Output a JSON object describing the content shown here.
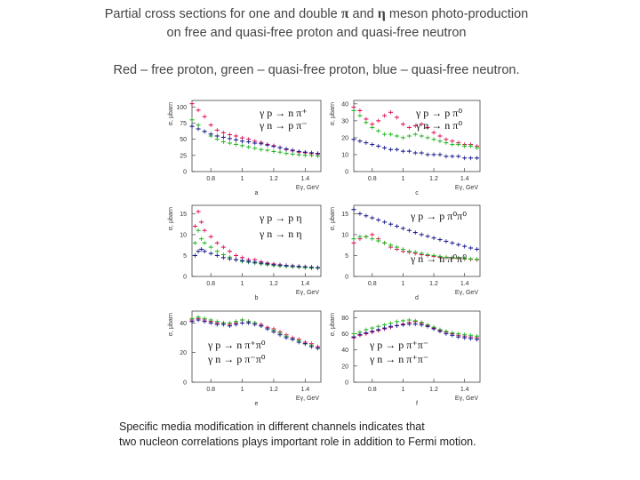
{
  "header": {
    "title_line1_a": "Partial cross sections for one and double ",
    "title_line1_pi": "π",
    "title_line1_and": " and ",
    "title_line1_eta": "η",
    "title_line1_b": " meson photo-production",
    "title_line2": "on free and quasi-free proton and quasi-free neutron",
    "legend_line": "Red – free proton, green – quasi-free proton, blue – quasi-free neutron."
  },
  "colors": {
    "free_proton": "#e0145a",
    "quasi_free_proton": "#22b822",
    "quasi_free_neutron": "#1a1a8c"
  },
  "footer": {
    "line1": "Specific media modification in different channels indicates that",
    "line2": "two nucleon correlations plays important role in addition to Fermi motion."
  },
  "chart_data": [
    {
      "id": "a",
      "type": "scatter",
      "ylabel": "σ, μbarn",
      "xlabel": "Eγ, GeV",
      "panel_label": "a",
      "xlim": [
        0.68,
        1.5
      ],
      "ylim": [
        0,
        110
      ],
      "yticks": [
        "0",
        "25",
        "50",
        "75",
        "100"
      ],
      "xticks": [
        "0.8",
        "1",
        "1.2",
        "1.4"
      ],
      "annotations": [
        "γ p → n π⁺",
        "γ n → p π⁻"
      ],
      "series": [
        {
          "name": "free proton",
          "x": [
            0.68,
            0.72,
            0.76,
            0.8,
            0.84,
            0.88,
            0.92,
            0.96,
            1.0,
            1.04,
            1.08,
            1.12,
            1.16,
            1.2,
            1.24,
            1.28,
            1.32,
            1.36,
            1.4,
            1.44,
            1.48
          ],
          "y": [
            105,
            95,
            85,
            72,
            64,
            60,
            57,
            55,
            52,
            50,
            47,
            45,
            42,
            40,
            37,
            34,
            32,
            30,
            29,
            28,
            27
          ]
        },
        {
          "name": "quasi-free proton",
          "x": [
            0.68,
            0.72,
            0.76,
            0.8,
            0.84,
            0.88,
            0.92,
            0.96,
            1.0,
            1.04,
            1.08,
            1.12,
            1.16,
            1.2,
            1.24,
            1.28,
            1.32,
            1.36,
            1.4,
            1.44,
            1.48
          ],
          "y": [
            80,
            72,
            62,
            55,
            50,
            46,
            44,
            42,
            40,
            38,
            36,
            34,
            33,
            31,
            30,
            28,
            27,
            26,
            25,
            25,
            24
          ]
        },
        {
          "name": "quasi-free neutron",
          "x": [
            0.68,
            0.72,
            0.76,
            0.8,
            0.84,
            0.88,
            0.92,
            0.96,
            1.0,
            1.04,
            1.08,
            1.12,
            1.16,
            1.2,
            1.24,
            1.28,
            1.32,
            1.36,
            1.4,
            1.44,
            1.48
          ],
          "y": [
            70,
            66,
            62,
            58,
            55,
            53,
            51,
            49,
            47,
            46,
            44,
            43,
            41,
            39,
            37,
            35,
            33,
            31,
            30,
            29,
            28
          ]
        }
      ]
    },
    {
      "id": "b",
      "type": "scatter",
      "ylabel": "σ, μbarn",
      "xlabel": "Eγ, GeV",
      "panel_label": "c",
      "xlim": [
        0.68,
        1.5
      ],
      "ylim": [
        0,
        42
      ],
      "yticks": [
        "0",
        "10",
        "20",
        "30",
        "40"
      ],
      "xticks": [
        "0.8",
        "1",
        "1.2",
        "1.4"
      ],
      "annotations": [
        "γ p → p π⁰",
        "γ n → n π⁰"
      ],
      "series": [
        {
          "name": "free proton",
          "x": [
            0.68,
            0.72,
            0.76,
            0.8,
            0.84,
            0.88,
            0.92,
            0.96,
            1.0,
            1.04,
            1.08,
            1.12,
            1.16,
            1.2,
            1.24,
            1.28,
            1.32,
            1.36,
            1.4,
            1.44,
            1.48
          ],
          "y": [
            38,
            36,
            31,
            28,
            30,
            33,
            35,
            32,
            28,
            26,
            27,
            28,
            26,
            23,
            21,
            19,
            18,
            17,
            16,
            16,
            15
          ]
        },
        {
          "name": "quasi-free proton",
          "x": [
            0.68,
            0.72,
            0.76,
            0.8,
            0.84,
            0.88,
            0.92,
            0.96,
            1.0,
            1.04,
            1.08,
            1.12,
            1.16,
            1.2,
            1.24,
            1.28,
            1.32,
            1.36,
            1.4,
            1.44,
            1.48
          ],
          "y": [
            36,
            33,
            29,
            26,
            24,
            22,
            22,
            21,
            20,
            21,
            22,
            21,
            20,
            19,
            18,
            17,
            16,
            16,
            15,
            15,
            14
          ]
        },
        {
          "name": "quasi-free neutron",
          "x": [
            0.68,
            0.72,
            0.76,
            0.8,
            0.84,
            0.88,
            0.92,
            0.96,
            1.0,
            1.04,
            1.08,
            1.12,
            1.16,
            1.2,
            1.24,
            1.28,
            1.32,
            1.36,
            1.4,
            1.44,
            1.48
          ],
          "y": [
            19,
            18,
            17,
            16,
            15,
            14,
            13,
            13,
            12,
            12,
            11,
            11,
            10,
            10,
            10,
            9,
            9,
            9,
            8,
            8,
            8
          ]
        }
      ]
    },
    {
      "id": "c",
      "type": "scatter",
      "ylabel": "σ, μbarn",
      "xlabel": "Eγ, GeV",
      "panel_label": "b",
      "xlim": [
        0.68,
        1.5
      ],
      "ylim": [
        0,
        17
      ],
      "yticks": [
        "0",
        "5",
        "10",
        "15"
      ],
      "xticks": [
        "0.8",
        "1",
        "1.2",
        "1.4"
      ],
      "annotations": [
        "γ p → p η",
        "γ n → n η"
      ],
      "series": [
        {
          "name": "free proton",
          "x": [
            0.7,
            0.72,
            0.74,
            0.76,
            0.8,
            0.84,
            0.88,
            0.92,
            0.96,
            1.0,
            1.04,
            1.08,
            1.12,
            1.16,
            1.2,
            1.24,
            1.28,
            1.32,
            1.36,
            1.4,
            1.44,
            1.48
          ],
          "y": [
            12,
            15.5,
            13,
            11,
            9.5,
            8,
            7,
            6,
            5,
            4.5,
            4,
            4,
            3.5,
            3.2,
            3,
            2.8,
            2.6,
            2.5,
            2.4,
            2.3,
            2.2,
            2.1
          ]
        },
        {
          "name": "quasi-free proton",
          "x": [
            0.7,
            0.72,
            0.74,
            0.76,
            0.8,
            0.84,
            0.88,
            0.92,
            0.96,
            1.0,
            1.04,
            1.08,
            1.12,
            1.16,
            1.2,
            1.24,
            1.28,
            1.32,
            1.36,
            1.4,
            1.44,
            1.48
          ],
          "y": [
            8,
            11,
            9,
            8,
            7,
            6,
            5.2,
            4.6,
            4,
            3.6,
            3.4,
            3.2,
            3,
            2.8,
            2.6,
            2.5,
            2.4,
            2.3,
            2.2,
            2.1,
            2,
            2
          ]
        },
        {
          "name": "quasi-free neutron",
          "x": [
            0.7,
            0.72,
            0.74,
            0.76,
            0.8,
            0.84,
            0.88,
            0.92,
            0.96,
            1.0,
            1.04,
            1.08,
            1.12,
            1.16,
            1.2,
            1.24,
            1.28,
            1.32,
            1.36,
            1.4,
            1.44,
            1.48
          ],
          "y": [
            5,
            6,
            6.5,
            6,
            5.5,
            5,
            4.5,
            4.2,
            4,
            3.8,
            3.6,
            3.4,
            3.2,
            3,
            2.8,
            2.7,
            2.6,
            2.5,
            2.4,
            2.3,
            2.2,
            2.1
          ]
        }
      ]
    },
    {
      "id": "d",
      "type": "scatter",
      "ylabel": "σ, μbarn",
      "xlabel": "Eγ, GeV",
      "panel_label": "d",
      "xlim": [
        0.68,
        1.5
      ],
      "ylim": [
        0,
        17
      ],
      "yticks": [
        "0",
        "5",
        "10",
        "15"
      ],
      "xticks": [
        "0.8",
        "1",
        "1.2",
        "1.4"
      ],
      "annotations": [
        "γ p → p π⁰π⁰",
        "γ n → n π⁰π⁰"
      ],
      "series": [
        {
          "name": "free proton",
          "x": [
            0.68,
            0.72,
            0.76,
            0.8,
            0.84,
            0.88,
            0.92,
            0.96,
            1.0,
            1.04,
            1.08,
            1.12,
            1.16,
            1.2,
            1.24,
            1.28,
            1.32,
            1.36,
            1.4,
            1.44,
            1.48
          ],
          "y": [
            8,
            9,
            9.5,
            10,
            9,
            8,
            7,
            6.5,
            6,
            5.8,
            5.5,
            5.2,
            5,
            4.8,
            4.6,
            4.5,
            4.4,
            4.3,
            4.2,
            4.1,
            4
          ]
        },
        {
          "name": "quasi-free proton",
          "x": [
            0.68,
            0.72,
            0.76,
            0.8,
            0.84,
            0.88,
            0.92,
            0.96,
            1.0,
            1.04,
            1.08,
            1.12,
            1.16,
            1.2,
            1.24,
            1.28,
            1.32,
            1.36,
            1.4,
            1.44,
            1.48
          ],
          "y": [
            9,
            9.5,
            9.5,
            9,
            8.5,
            8,
            7.5,
            7,
            6.5,
            6,
            5.8,
            5.5,
            5.2,
            5,
            4.8,
            4.6,
            4.5,
            4.4,
            4.3,
            4.2,
            4.1
          ]
        },
        {
          "name": "quasi-free neutron",
          "x": [
            0.68,
            0.72,
            0.76,
            0.8,
            0.84,
            0.88,
            0.92,
            0.96,
            1.0,
            1.04,
            1.08,
            1.12,
            1.16,
            1.2,
            1.24,
            1.28,
            1.32,
            1.36,
            1.4,
            1.44,
            1.48
          ],
          "y": [
            16,
            15,
            14.5,
            14,
            13.5,
            13,
            12.5,
            12,
            11.5,
            11,
            10.5,
            10,
            9.6,
            9.2,
            8.8,
            8.4,
            8,
            7.6,
            7.2,
            6.8,
            6.5
          ]
        }
      ]
    },
    {
      "id": "e",
      "type": "scatter",
      "ylabel": "σ, μbarn",
      "xlabel": "Eγ, GeV",
      "panel_label": "e",
      "xlim": [
        0.68,
        1.5
      ],
      "ylim": [
        0,
        48
      ],
      "yticks": [
        "0",
        "20",
        "40"
      ],
      "xticks": [
        "0.8",
        "1",
        "1.2",
        "1.4"
      ],
      "annotations": [
        "γ p → n π⁺π⁰",
        "γ n → p π⁻π⁰"
      ],
      "series": [
        {
          "name": "free proton",
          "x": [
            0.68,
            0.72,
            0.76,
            0.8,
            0.84,
            0.88,
            0.92,
            0.96,
            1.0,
            1.04,
            1.08,
            1.12,
            1.16,
            1.2,
            1.24,
            1.28,
            1.32,
            1.36,
            1.4,
            1.44,
            1.48
          ],
          "y": [
            42,
            43,
            42,
            41,
            40,
            40,
            39,
            40,
            42,
            41,
            40,
            39,
            37,
            36,
            34,
            32,
            30,
            29,
            27,
            26,
            24
          ]
        },
        {
          "name": "quasi-free proton",
          "x": [
            0.68,
            0.72,
            0.76,
            0.8,
            0.84,
            0.88,
            0.92,
            0.96,
            1.0,
            1.04,
            1.08,
            1.12,
            1.16,
            1.2,
            1.24,
            1.28,
            1.32,
            1.36,
            1.4,
            1.44,
            1.48
          ],
          "y": [
            43,
            44,
            43,
            42,
            41,
            40,
            40,
            41,
            42,
            41,
            40,
            38,
            36,
            35,
            33,
            31,
            29,
            28,
            26,
            25,
            23
          ]
        },
        {
          "name": "quasi-free neutron",
          "x": [
            0.68,
            0.72,
            0.76,
            0.8,
            0.84,
            0.88,
            0.92,
            0.96,
            1.0,
            1.04,
            1.08,
            1.12,
            1.16,
            1.2,
            1.24,
            1.28,
            1.32,
            1.36,
            1.4,
            1.44,
            1.48
          ],
          "y": [
            41,
            42,
            41,
            40,
            39,
            39,
            38,
            39,
            40,
            40,
            39,
            38,
            36,
            34,
            32,
            30,
            29,
            27,
            26,
            24,
            23
          ]
        }
      ]
    },
    {
      "id": "f",
      "type": "scatter",
      "ylabel": "σ, μbarn",
      "xlabel": "Eγ, GeV",
      "panel_label": "f",
      "xlim": [
        0.68,
        1.5
      ],
      "ylim": [
        0,
        88
      ],
      "yticks": [
        "0",
        "20",
        "40",
        "60",
        "80"
      ],
      "xticks": [
        "0.8",
        "1",
        "1.2",
        "1.4"
      ],
      "annotations": [
        "γ p → p π⁺π⁻",
        "γ n → n π⁺π⁻"
      ],
      "series": [
        {
          "name": "free proton",
          "x": [
            0.68,
            0.72,
            0.76,
            0.8,
            0.84,
            0.88,
            0.92,
            0.96,
            1.0,
            1.04,
            1.08,
            1.12,
            1.16,
            1.2,
            1.24,
            1.28,
            1.32,
            1.36,
            1.4,
            1.44,
            1.48
          ],
          "y": [
            55,
            58,
            60,
            62,
            64,
            66,
            68,
            70,
            72,
            74,
            75,
            73,
            70,
            67,
            64,
            62,
            60,
            58,
            57,
            56,
            55
          ]
        },
        {
          "name": "quasi-free proton",
          "x": [
            0.68,
            0.72,
            0.76,
            0.8,
            0.84,
            0.88,
            0.92,
            0.96,
            1.0,
            1.04,
            1.08,
            1.12,
            1.16,
            1.2,
            1.24,
            1.28,
            1.32,
            1.36,
            1.4,
            1.44,
            1.48
          ],
          "y": [
            60,
            62,
            65,
            67,
            69,
            71,
            73,
            75,
            76,
            77,
            76,
            74,
            71,
            68,
            65,
            63,
            61,
            60,
            59,
            58,
            57
          ]
        },
        {
          "name": "quasi-free neutron",
          "x": [
            0.68,
            0.72,
            0.76,
            0.8,
            0.84,
            0.88,
            0.92,
            0.96,
            1.0,
            1.04,
            1.08,
            1.12,
            1.16,
            1.2,
            1.24,
            1.28,
            1.32,
            1.36,
            1.4,
            1.44,
            1.48
          ],
          "y": [
            56,
            59,
            61,
            63,
            65,
            67,
            69,
            70,
            71,
            72,
            72,
            71,
            69,
            66,
            63,
            60,
            58,
            56,
            55,
            54,
            53
          ]
        }
      ]
    }
  ]
}
